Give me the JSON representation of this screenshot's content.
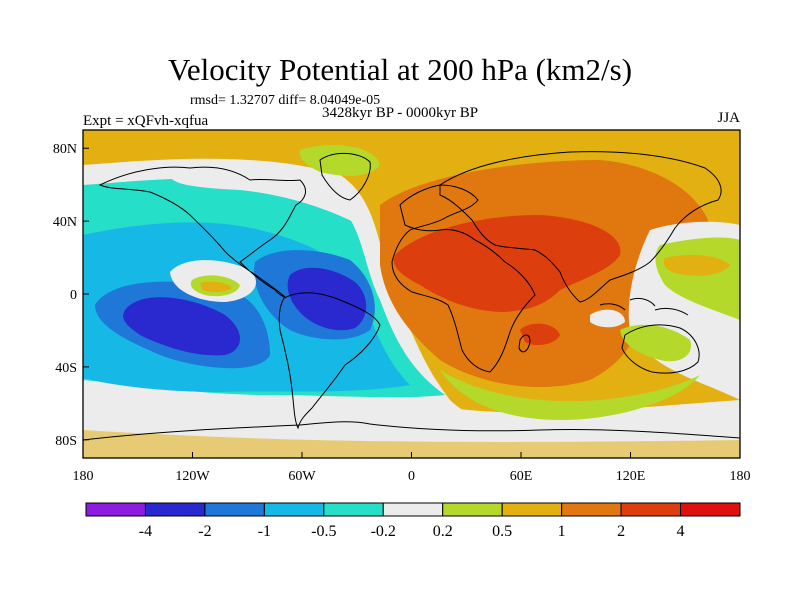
{
  "header": {
    "title": "Velocity Potential at 200 hPa (km2/s)",
    "stats": "rmsd= 1.32707 diff= 8.04049e-05",
    "experiment": "Expt = xQFvh-xqfua",
    "period": "3428kyr BP - 0000kyr BP",
    "season": "JJA"
  },
  "map": {
    "lon_range": [
      -180,
      180
    ],
    "lat_range": [
      -90,
      90
    ],
    "lon_ticks": [
      {
        "value": -180,
        "label": "180"
      },
      {
        "value": -120,
        "label": "120W"
      },
      {
        "value": -60,
        "label": "60W"
      },
      {
        "value": 0,
        "label": "0"
      },
      {
        "value": 60,
        "label": "60E"
      },
      {
        "value": 120,
        "label": "120E"
      },
      {
        "value": 180,
        "label": "180"
      }
    ],
    "lat_ticks": [
      {
        "value": 80,
        "label": "80N"
      },
      {
        "value": 40,
        "label": "40N"
      },
      {
        "value": 0,
        "label": "0"
      },
      {
        "value": -40,
        "label": "40S"
      },
      {
        "value": -80,
        "label": "80S"
      }
    ]
  },
  "colorbar": {
    "levels": [
      "-4",
      "-2",
      "-1",
      "-0.5",
      "-0.2",
      "0.2",
      "0.5",
      "1",
      "2",
      "4"
    ],
    "colors": [
      "#8d1be0",
      "#2a28cf",
      "#1f78d8",
      "#16b9e6",
      "#26dfc9",
      "#ececec",
      "#b5d92b",
      "#e3b012",
      "#e0780f",
      "#dc3e0e",
      "#e01010"
    ]
  }
}
